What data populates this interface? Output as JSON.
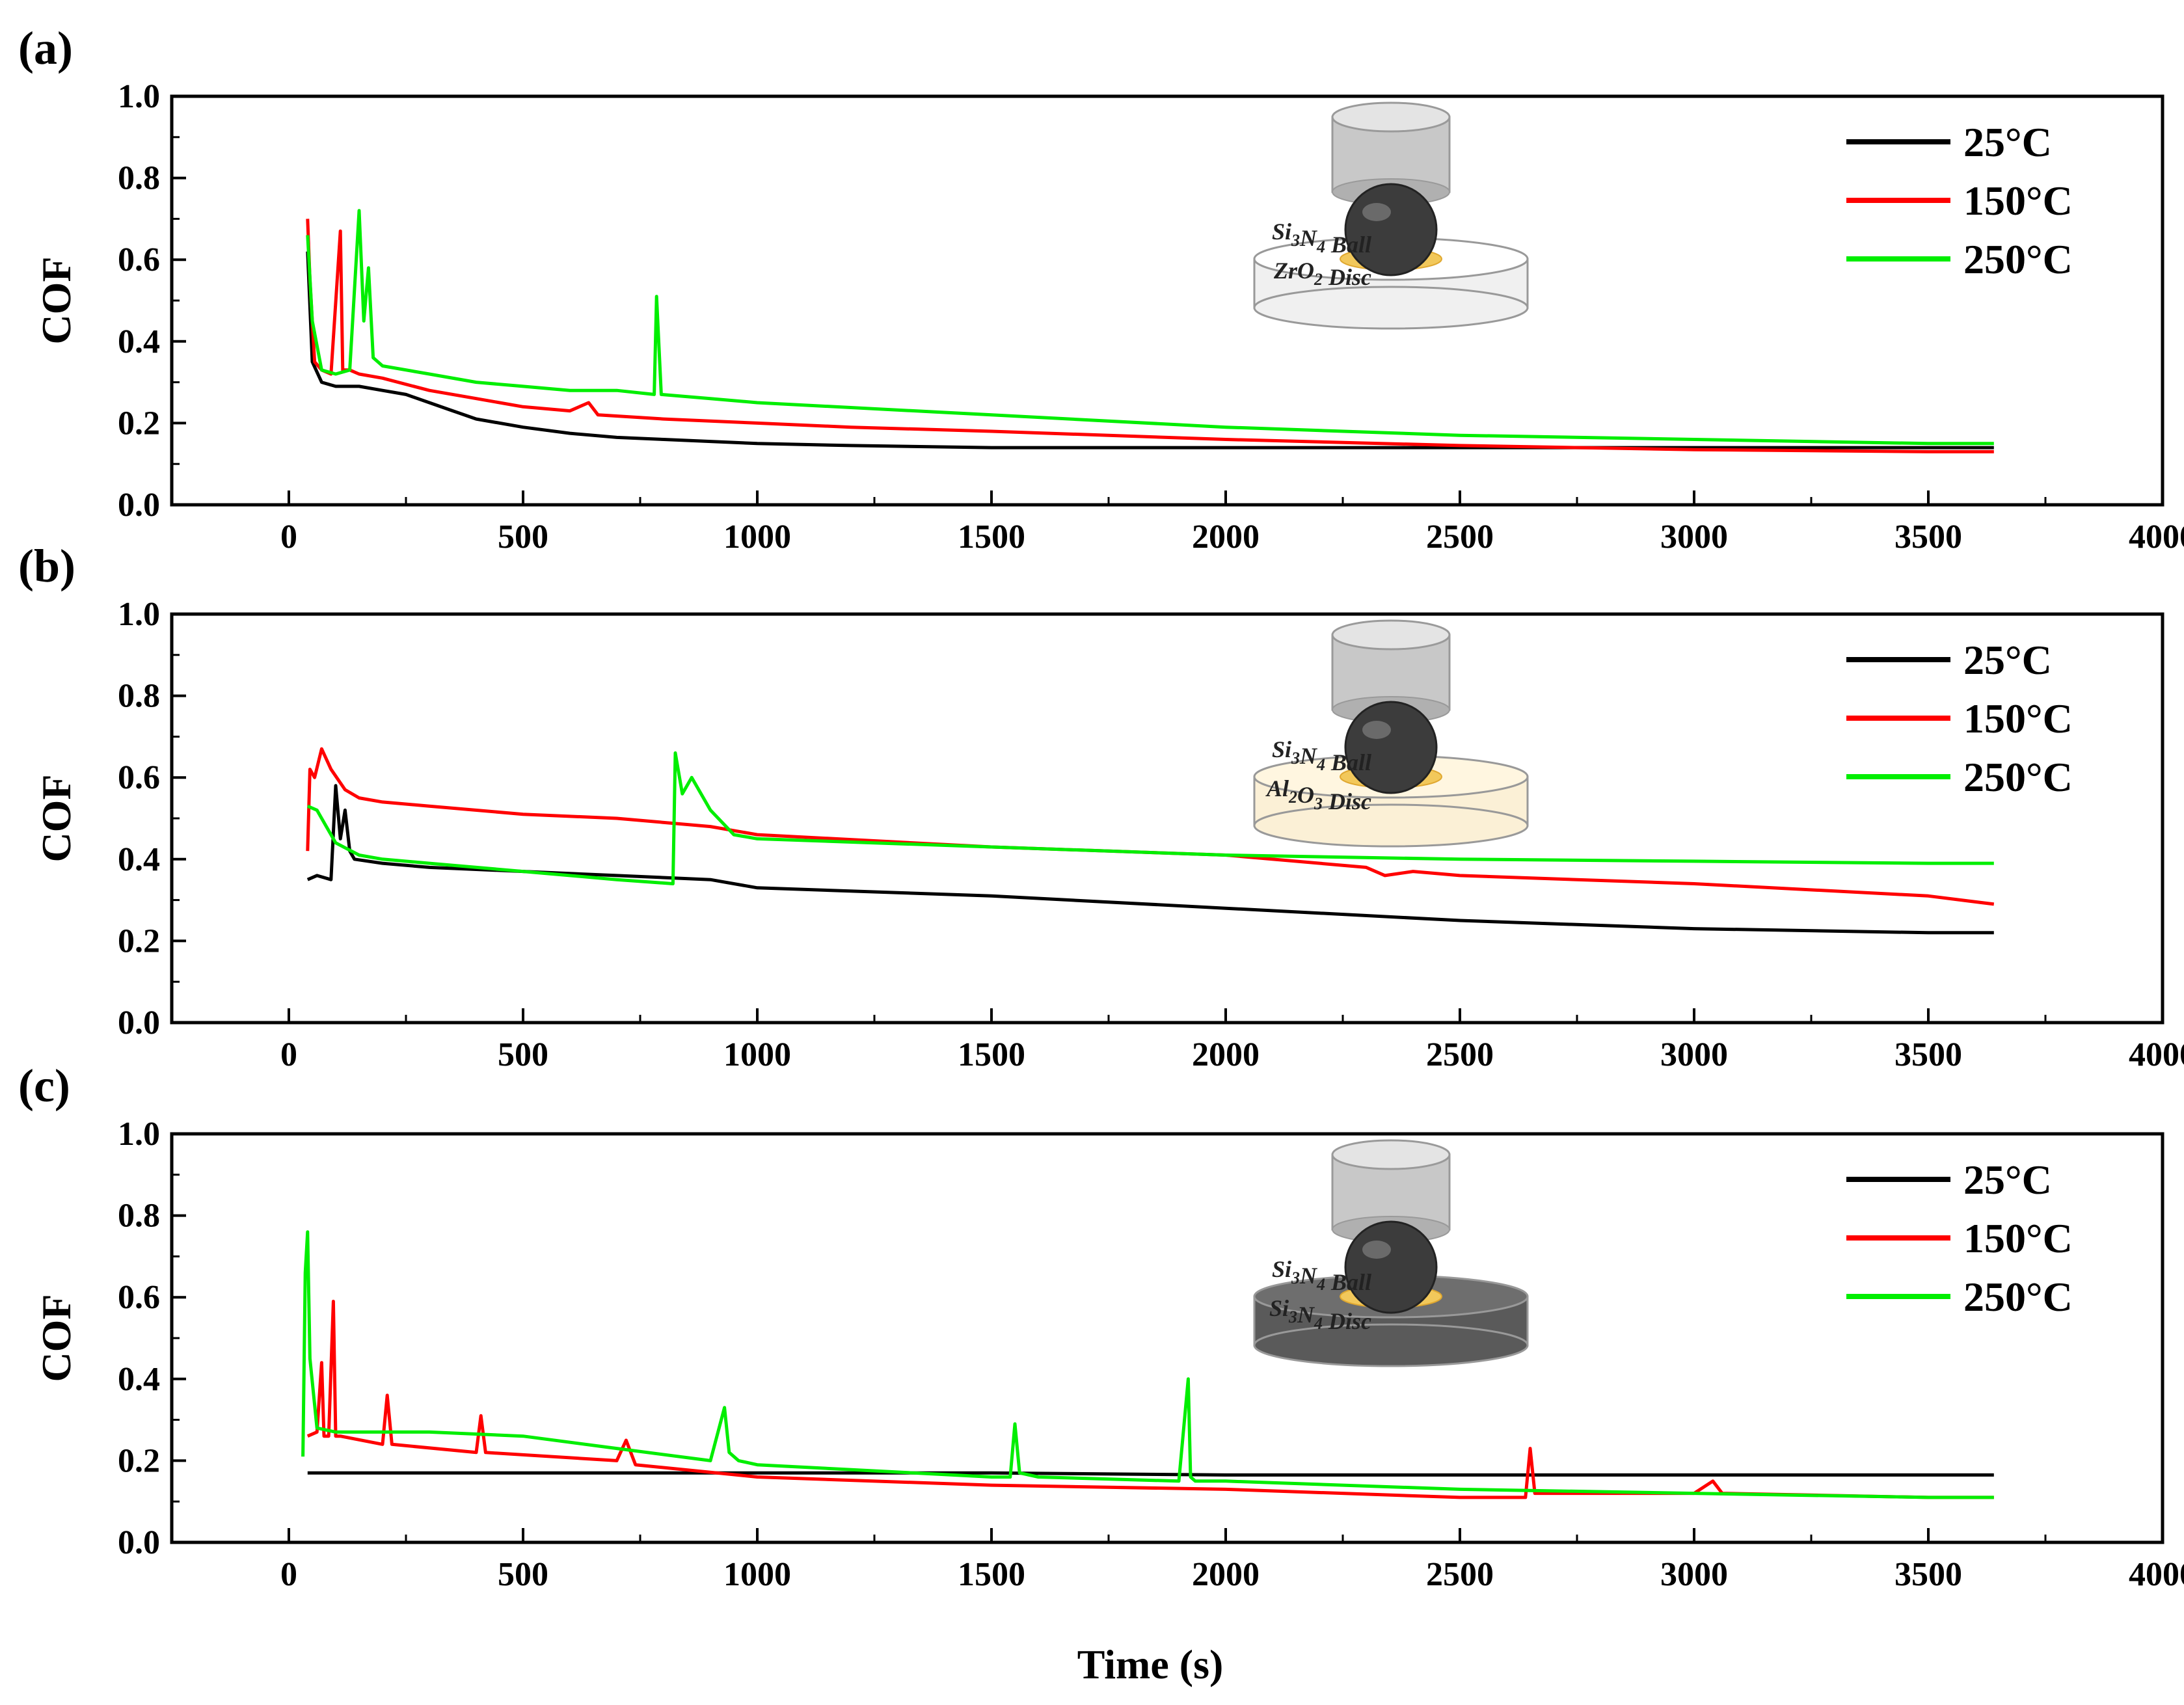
{
  "xlabel": "Time (s)",
  "colors": {
    "25°C": "#000000",
    "150°C": "#ff0000",
    "250°C": "#00ee00"
  },
  "chart_data": [
    {
      "type": "line",
      "panel_label": "(a)",
      "ylabel": "COF",
      "xlim": [
        -250,
        4000
      ],
      "ylim": [
        0.0,
        1.0
      ],
      "x_ticks": [
        "0",
        "500",
        "1000",
        "1500",
        "2000",
        "2500",
        "3000",
        "3500",
        "4000"
      ],
      "y_ticks": [
        "0.0",
        "0.2",
        "0.4",
        "0.6",
        "0.8",
        "1.0"
      ],
      "schematic": {
        "ball": "Si",
        "ball_sub": "3",
        "ball_mid": "N",
        "ball_sub2": "4",
        "ball_rest": " Ball",
        "disc": "ZrO",
        "disc_sub": "2",
        "disc_sub2": "",
        "disc_rest": " Disc",
        "disc_color": "#f0f0f0",
        "top_disc_color": "#ffffff"
      },
      "series": [
        {
          "name": "25°C",
          "color": "#000000",
          "x": [
            40,
            50,
            70,
            100,
            150,
            200,
            250,
            300,
            350,
            400,
            500,
            600,
            700,
            800,
            1000,
            1200,
            1500,
            2000,
            2500,
            3000,
            3500,
            3640
          ],
          "y": [
            0.62,
            0.35,
            0.3,
            0.29,
            0.29,
            0.28,
            0.27,
            0.25,
            0.23,
            0.21,
            0.19,
            0.175,
            0.165,
            0.16,
            0.15,
            0.145,
            0.14,
            0.14,
            0.14,
            0.14,
            0.14,
            0.14
          ]
        },
        {
          "name": "150°C",
          "color": "#ff0000",
          "x": [
            40,
            45,
            55,
            70,
            90,
            110,
            115,
            130,
            150,
            200,
            300,
            400,
            500,
            600,
            640,
            660,
            800,
            1000,
            1200,
            1500,
            2000,
            2500,
            3000,
            3500,
            3640
          ],
          "y": [
            0.7,
            0.55,
            0.35,
            0.33,
            0.32,
            0.67,
            0.33,
            0.33,
            0.32,
            0.31,
            0.28,
            0.26,
            0.24,
            0.23,
            0.25,
            0.22,
            0.21,
            0.2,
            0.19,
            0.18,
            0.16,
            0.145,
            0.135,
            0.13,
            0.13
          ]
        },
        {
          "name": "250°C",
          "color": "#00ee00",
          "x": [
            40,
            50,
            70,
            100,
            130,
            150,
            160,
            170,
            180,
            200,
            300,
            400,
            500,
            600,
            700,
            780,
            785,
            795,
            900,
            1000,
            1500,
            2000,
            2500,
            3000,
            3500,
            3640
          ],
          "y": [
            0.66,
            0.45,
            0.33,
            0.32,
            0.33,
            0.72,
            0.45,
            0.58,
            0.36,
            0.34,
            0.32,
            0.3,
            0.29,
            0.28,
            0.28,
            0.27,
            0.51,
            0.27,
            0.26,
            0.25,
            0.22,
            0.19,
            0.17,
            0.16,
            0.15,
            0.15
          ]
        }
      ]
    },
    {
      "type": "line",
      "panel_label": "(b)",
      "ylabel": "COF",
      "xlim": [
        -250,
        4000
      ],
      "ylim": [
        0.0,
        1.0
      ],
      "x_ticks": [
        "0",
        "500",
        "1000",
        "1500",
        "2000",
        "2500",
        "3000",
        "3500",
        "4000"
      ],
      "y_ticks": [
        "0.0",
        "0.2",
        "0.4",
        "0.6",
        "0.8",
        "1.0"
      ],
      "schematic": {
        "ball": "Si",
        "ball_sub": "3",
        "ball_mid": "N",
        "ball_sub2": "4",
        "ball_rest": " Ball",
        "disc": "Al",
        "disc_sub": "2",
        "disc_mid": "O",
        "disc_sub2": "3",
        "disc_rest": " Disc",
        "disc_color": "#fbf0d6",
        "top_disc_color": "#fff6e0"
      },
      "series": [
        {
          "name": "25°C",
          "color": "#000000",
          "x": [
            40,
            60,
            90,
            100,
            110,
            120,
            130,
            140,
            200,
            300,
            500,
            700,
            900,
            1000,
            1500,
            2000,
            2500,
            3000,
            3500,
            3640
          ],
          "y": [
            0.35,
            0.36,
            0.35,
            0.58,
            0.45,
            0.52,
            0.42,
            0.4,
            0.39,
            0.38,
            0.37,
            0.36,
            0.35,
            0.33,
            0.31,
            0.28,
            0.25,
            0.23,
            0.22,
            0.22
          ]
        },
        {
          "name": "150°C",
          "color": "#ff0000",
          "x": [
            40,
            45,
            55,
            70,
            90,
            120,
            150,
            200,
            300,
            500,
            700,
            900,
            1000,
            1500,
            2000,
            2300,
            2340,
            2400,
            2500,
            3000,
            3500,
            3640
          ],
          "y": [
            0.42,
            0.62,
            0.6,
            0.67,
            0.62,
            0.57,
            0.55,
            0.54,
            0.53,
            0.51,
            0.5,
            0.48,
            0.46,
            0.43,
            0.41,
            0.38,
            0.36,
            0.37,
            0.36,
            0.34,
            0.31,
            0.29
          ]
        },
        {
          "name": "250°C",
          "color": "#00ee00",
          "x": [
            40,
            60,
            80,
            100,
            150,
            200,
            300,
            500,
            700,
            820,
            825,
            840,
            860,
            900,
            950,
            1000,
            1500,
            2000,
            2500,
            3000,
            3500,
            3640
          ],
          "y": [
            0.53,
            0.52,
            0.48,
            0.44,
            0.41,
            0.4,
            0.39,
            0.37,
            0.35,
            0.34,
            0.66,
            0.56,
            0.6,
            0.52,
            0.46,
            0.45,
            0.43,
            0.41,
            0.4,
            0.395,
            0.39,
            0.39
          ]
        }
      ]
    },
    {
      "type": "line",
      "panel_label": "(c)",
      "ylabel": "COF",
      "xlim": [
        -250,
        4000
      ],
      "ylim": [
        0.0,
        1.0
      ],
      "x_ticks": [
        "0",
        "500",
        "1000",
        "1500",
        "2000",
        "2500",
        "3000",
        "3500",
        "4000"
      ],
      "y_ticks": [
        "0.0",
        "0.2",
        "0.4",
        "0.6",
        "0.8",
        "1.0"
      ],
      "schematic": {
        "ball": "Si",
        "ball_sub": "3",
        "ball_mid": "N",
        "ball_sub2": "4",
        "ball_rest": " Ball",
        "disc": "Si",
        "disc_sub": "3",
        "disc_mid": "N",
        "disc_sub2": "4",
        "disc_rest": " Disc",
        "disc_color": "#5a5a5a",
        "top_disc_color": "#6e6e6e"
      },
      "series": [
        {
          "name": "25°C",
          "color": "#000000",
          "x": [
            40,
            60,
            100,
            500,
            1000,
            1500,
            2000,
            2500,
            3000,
            3500,
            3640
          ],
          "y": [
            0.17,
            0.17,
            0.17,
            0.17,
            0.17,
            0.17,
            0.165,
            0.165,
            0.165,
            0.165,
            0.165
          ]
        },
        {
          "name": "150°C",
          "color": "#ff0000",
          "x": [
            40,
            60,
            70,
            75,
            85,
            95,
            100,
            110,
            200,
            210,
            220,
            400,
            410,
            420,
            700,
            720,
            740,
            1000,
            1500,
            2000,
            2500,
            2640,
            2650,
            2660,
            2700,
            3000,
            3040,
            3060,
            3500,
            3640
          ],
          "y": [
            0.26,
            0.27,
            0.44,
            0.26,
            0.26,
            0.59,
            0.26,
            0.26,
            0.24,
            0.36,
            0.24,
            0.22,
            0.31,
            0.22,
            0.2,
            0.25,
            0.19,
            0.16,
            0.14,
            0.13,
            0.11,
            0.11,
            0.23,
            0.12,
            0.12,
            0.12,
            0.15,
            0.12,
            0.11,
            0.11
          ]
        },
        {
          "name": "250°C",
          "color": "#00ee00",
          "x": [
            30,
            35,
            40,
            45,
            60,
            100,
            200,
            300,
            500,
            700,
            900,
            930,
            940,
            960,
            1000,
            1500,
            1540,
            1550,
            1560,
            1600,
            1900,
            1920,
            1925,
            1935,
            2000,
            2500,
            3000,
            3500,
            3640
          ],
          "y": [
            0.21,
            0.66,
            0.76,
            0.45,
            0.28,
            0.27,
            0.27,
            0.27,
            0.26,
            0.23,
            0.2,
            0.33,
            0.22,
            0.2,
            0.19,
            0.16,
            0.16,
            0.29,
            0.17,
            0.16,
            0.15,
            0.4,
            0.16,
            0.15,
            0.15,
            0.13,
            0.12,
            0.11,
            0.11
          ]
        }
      ]
    }
  ]
}
